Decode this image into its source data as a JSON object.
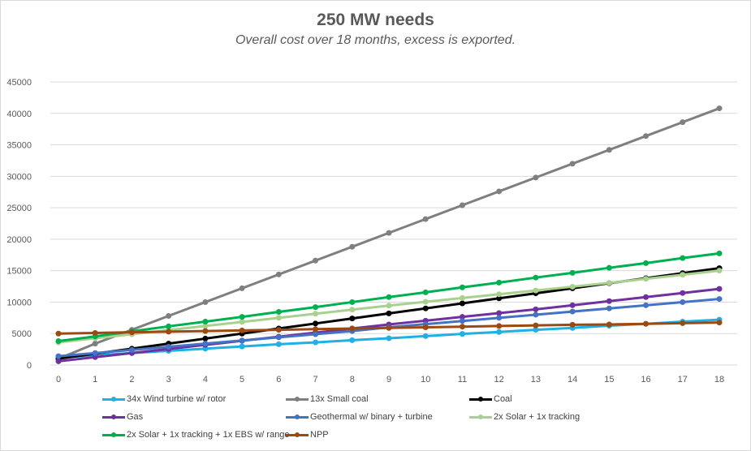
{
  "chart_data": {
    "type": "line",
    "title": "250 MW needs",
    "subtitle": "Overall cost over 18 months, excess is exported.",
    "xlabel": "",
    "ylabel": "",
    "x": [
      0,
      1,
      2,
      3,
      4,
      5,
      6,
      7,
      8,
      9,
      10,
      11,
      12,
      13,
      14,
      15,
      16,
      17,
      18
    ],
    "x_tick_labels": [
      "0",
      "1",
      "2",
      "3",
      "4",
      "5",
      "6",
      "7",
      "8",
      "9",
      "10",
      "11",
      "12",
      "13",
      "14",
      "15",
      "16",
      "17",
      "18"
    ],
    "ylim": [
      0,
      45000
    ],
    "y_ticks": [
      0,
      5000,
      10000,
      15000,
      20000,
      25000,
      30000,
      35000,
      40000,
      45000
    ],
    "y_tick_labels": [
      "0",
      "5000",
      "10000",
      "15000",
      "20000",
      "25000",
      "30000",
      "35000",
      "40000",
      "45000"
    ],
    "grid": "horizontal",
    "legend_position": "bottom",
    "series": [
      {
        "name": "34x Wind turbine w/ rotor",
        "color": "#1fb0e6",
        "values": [
          1200,
          1550,
          1900,
          2250,
          2600,
          2950,
          3300,
          3600,
          3950,
          4250,
          4600,
          4950,
          5250,
          5600,
          5900,
          6250,
          6550,
          6900,
          7200
        ]
      },
      {
        "name": "13x Small coal",
        "color": "#7f7f7f",
        "values": [
          1000,
          3400,
          5600,
          7800,
          10000,
          12200,
          14400,
          16600,
          18800,
          21000,
          23200,
          25400,
          27600,
          29800,
          32000,
          34200,
          36400,
          38600,
          40800
        ]
      },
      {
        "name": "Coal",
        "color": "#000000",
        "values": [
          1000,
          1800,
          2600,
          3400,
          4200,
          5000,
          5800,
          6600,
          7400,
          8200,
          9000,
          9800,
          10600,
          11400,
          12200,
          13000,
          13800,
          14600,
          15400
        ]
      },
      {
        "name": "Gas",
        "color": "#7030a0",
        "values": [
          600,
          1250,
          1900,
          2550,
          3200,
          3850,
          4500,
          5150,
          5800,
          6450,
          7050,
          7650,
          8250,
          8850,
          9500,
          10150,
          10800,
          11450,
          12100
        ]
      },
      {
        "name": "Geothermal w/ binary + turbine",
        "color": "#4472c4",
        "values": [
          1400,
          1900,
          2400,
          2900,
          3400,
          3900,
          4400,
          4900,
          5400,
          6000,
          6500,
          7000,
          7500,
          8000,
          8500,
          9000,
          9500,
          10000,
          10500
        ]
      },
      {
        "name": "2x Solar + 1x tracking",
        "color": "#a9d18e",
        "values": [
          3600,
          4250,
          4900,
          5550,
          6200,
          6850,
          7500,
          8150,
          8800,
          9450,
          10050,
          10650,
          11250,
          11850,
          12450,
          13050,
          13700,
          14350,
          15000
        ]
      },
      {
        "name": "2x Solar + 1x tracking + 1x EBS w/ range",
        "color": "#00b050",
        "values": [
          3800,
          4550,
          5350,
          6150,
          6900,
          7650,
          8450,
          9200,
          10000,
          10800,
          11550,
          12350,
          13100,
          13900,
          14650,
          15450,
          16200,
          17000,
          17750
        ]
      },
      {
        "name": "NPP",
        "color": "#9c4a12",
        "values": [
          5000,
          5100,
          5200,
          5300,
          5400,
          5500,
          5600,
          5700,
          5800,
          5900,
          6000,
          6100,
          6200,
          6300,
          6400,
          6450,
          6550,
          6650,
          6750
        ]
      }
    ]
  }
}
